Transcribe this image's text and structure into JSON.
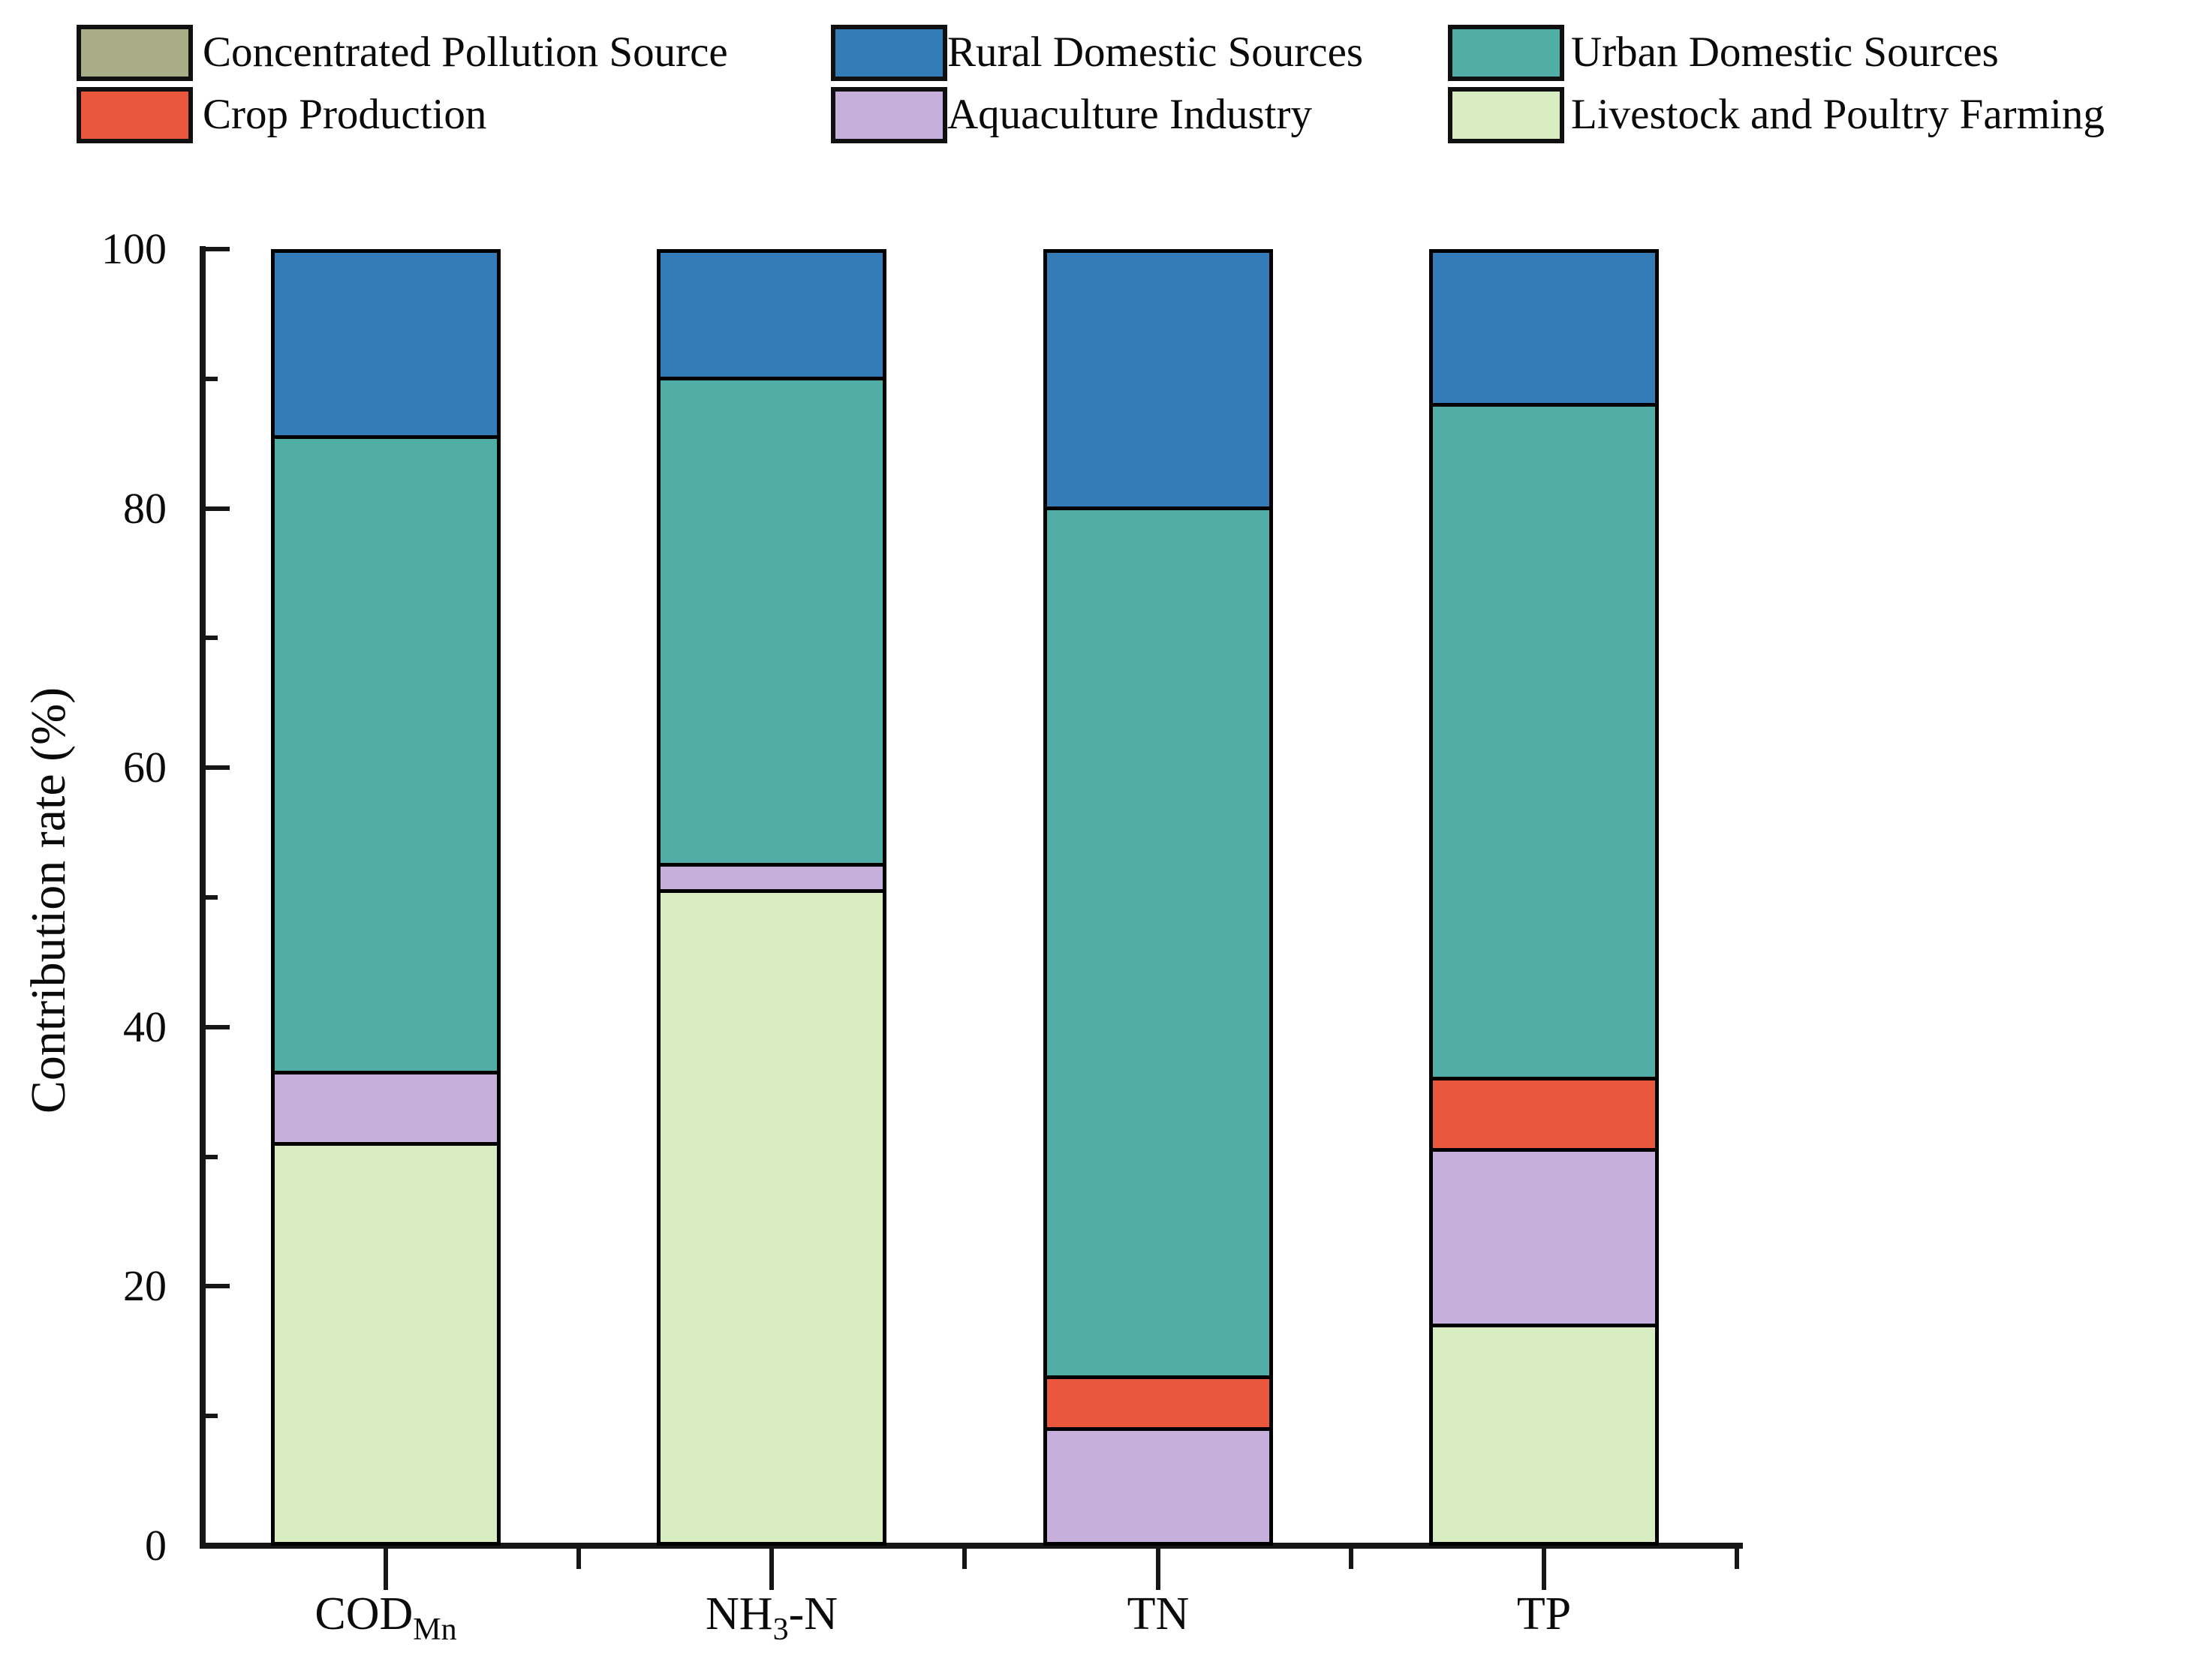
{
  "legend": {
    "items": [
      {
        "label": "Concentrated Pollution Source",
        "color": "#a8ad88"
      },
      {
        "label": "Rural Domestic Sources",
        "color": "#337cb7"
      },
      {
        "label": "Urban Domestic Sources",
        "color": "#51aea6"
      },
      {
        "label": "Crop Production",
        "color": "#e9573d"
      },
      {
        "label": "Aquaculture Industry",
        "color": "#c6afda"
      },
      {
        "label": "Livestock and Poultry Farming",
        "color": "#d7ecc0"
      }
    ]
  },
  "chart_data": {
    "type": "bar",
    "stacked": true,
    "title": "",
    "xlabel": "",
    "ylabel": "Contribution rate (%)",
    "ylim": [
      0,
      100
    ],
    "yticks_major": [
      0,
      20,
      40,
      60,
      80,
      100
    ],
    "yticks_minor": [
      10,
      30,
      50,
      70,
      90
    ],
    "grid": false,
    "legend_position": "top",
    "categories": [
      "COD_Mn",
      "NH3-N",
      "TN",
      "TP"
    ],
    "category_parts": [
      [
        {
          "t": "COD"
        },
        {
          "t": "Mn",
          "sub": true
        }
      ],
      [
        {
          "t": "NH"
        },
        {
          "t": "3",
          "sub": true
        },
        {
          "t": "-N"
        }
      ],
      [
        {
          "t": "TN"
        }
      ],
      [
        {
          "t": "TP"
        }
      ]
    ],
    "stack_order": "bottom_to_top",
    "series": [
      {
        "name": "Livestock and Poultry Farming",
        "color": "#d7ecc0",
        "values": [
          31.0,
          50.5,
          0.0,
          17.0
        ]
      },
      {
        "name": "Aquaculture Industry",
        "color": "#c6afda",
        "values": [
          5.5,
          2.0,
          9.0,
          13.5
        ]
      },
      {
        "name": "Crop Production",
        "color": "#e9573d",
        "values": [
          0.0,
          0.0,
          4.0,
          5.5
        ]
      },
      {
        "name": "Urban Domestic Sources",
        "color": "#51aea6",
        "values": [
          49.0,
          37.5,
          67.0,
          52.0
        ]
      },
      {
        "name": "Rural Domestic Sources",
        "color": "#337cb7",
        "values": [
          14.5,
          10.0,
          20.0,
          12.0
        ]
      },
      {
        "name": "Concentrated Pollution Source",
        "color": "#a8ad88",
        "values": [
          0.0,
          0.0,
          0.0,
          0.0
        ]
      }
    ]
  }
}
